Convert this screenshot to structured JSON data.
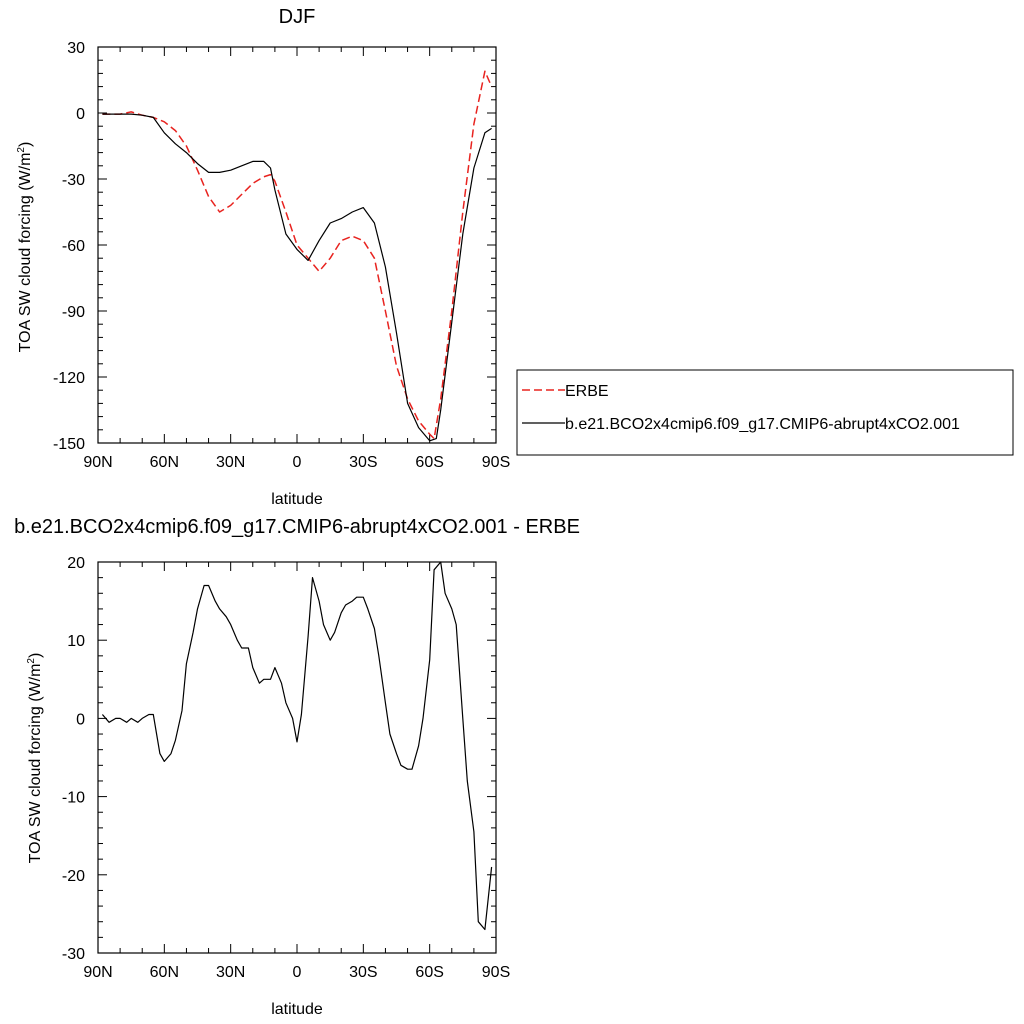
{
  "chart_data": [
    {
      "type": "line",
      "title": "DJF",
      "xlabel": "latitude",
      "ylabel": "TOA SW cloud forcing (W/m",
      "ylabel_sup": "2",
      "ylabel_close": ")",
      "xlim": [
        90,
        -90
      ],
      "ylim": [
        -150,
        30
      ],
      "x_ticks": [
        90,
        60,
        30,
        0,
        -30,
        -60,
        -90
      ],
      "x_tick_labels": [
        "90N",
        "60N",
        "30N",
        "0",
        "30S",
        "60S",
        "90S"
      ],
      "y_ticks": [
        -150,
        -120,
        -90,
        -60,
        -30,
        0,
        30
      ],
      "y_tick_labels": [
        "-150",
        "-120",
        "-90",
        "-60",
        "-30",
        "0",
        "30"
      ],
      "legend_position": "right",
      "series": [
        {
          "name": "ERBE",
          "color": "#e8231f",
          "dash": "dashed",
          "x": [
            88,
            85,
            80,
            75,
            70,
            65,
            60,
            55,
            50,
            45,
            40,
            35,
            30,
            25,
            20,
            15,
            12,
            10,
            5,
            0,
            -5,
            -10,
            -15,
            -20,
            -25,
            -30,
            -35,
            -40,
            -45,
            -50,
            -55,
            -60,
            -62,
            -65,
            -70,
            -75,
            -80,
            -85,
            -88
          ],
          "y": [
            -0.5,
            -0.5,
            -0.5,
            0.5,
            -1,
            -2,
            -4,
            -8,
            -15,
            -26,
            -38,
            -45,
            -42,
            -37,
            -32,
            -29,
            -28,
            -31,
            -45,
            -60,
            -66,
            -72,
            -66,
            -58,
            -56,
            -58,
            -66,
            -90,
            -115,
            -130,
            -140,
            -146,
            -148,
            -130,
            -90,
            -45,
            -5,
            19,
            12
          ]
        },
        {
          "name": "b.e21.BCO2x4cmip6.f09_g17.CMIP6-abrupt4xCO2.001",
          "color": "#000000",
          "dash": "solid",
          "x": [
            88,
            85,
            80,
            75,
            70,
            65,
            60,
            55,
            50,
            45,
            40,
            35,
            30,
            25,
            20,
            15,
            12,
            10,
            5,
            0,
            -5,
            -10,
            -15,
            -20,
            -25,
            -30,
            -35,
            -40,
            -45,
            -50,
            -55,
            -60,
            -63,
            -65,
            -70,
            -75,
            -80,
            -85,
            -88
          ],
          "y": [
            -0.5,
            -0.5,
            -0.5,
            -0.5,
            -1,
            -2,
            -9,
            -14,
            -18,
            -23,
            -27,
            -27,
            -26,
            -24,
            -22,
            -22,
            -25,
            -35,
            -55,
            -62,
            -67,
            -58,
            -50,
            -48,
            -45,
            -43,
            -50,
            -70,
            -100,
            -132,
            -143,
            -149,
            -148,
            -135,
            -95,
            -55,
            -25,
            -9,
            -7
          ]
        }
      ]
    },
    {
      "type": "line",
      "title": "b.e21.BCO2x4cmip6.f09_g17.CMIP6-abrupt4xCO2.001 - ERBE",
      "xlabel": "latitude",
      "ylabel": "TOA SW cloud forcing (W/m",
      "ylabel_sup": "2",
      "ylabel_close": ")",
      "xlim": [
        90,
        -90
      ],
      "ylim": [
        -30,
        20
      ],
      "x_ticks": [
        90,
        60,
        30,
        0,
        -30,
        -60,
        -90
      ],
      "x_tick_labels": [
        "90N",
        "60N",
        "30N",
        "0",
        "30S",
        "60S",
        "90S"
      ],
      "y_ticks": [
        -30,
        -20,
        -10,
        0,
        10,
        20
      ],
      "y_tick_labels": [
        "-30",
        "-20",
        "-10",
        "0",
        "10",
        "20"
      ],
      "series": [
        {
          "color": "#000000",
          "dash": "solid",
          "x": [
            88,
            85,
            82,
            80,
            77,
            75,
            72,
            70,
            67,
            65,
            62,
            60,
            57,
            55,
            52,
            50,
            47,
            45,
            42,
            40,
            37,
            35,
            32,
            30,
            27,
            25,
            22,
            20,
            17,
            15,
            12,
            10,
            7,
            5,
            2,
            0,
            -2,
            -5,
            -7,
            -10,
            -12,
            -15,
            -17,
            -20,
            -22,
            -25,
            -27,
            -30,
            -32,
            -35,
            -37,
            -40,
            -42,
            -45,
            -47,
            -50,
            -52,
            -55,
            -57,
            -60,
            -62,
            -65,
            -67,
            -70,
            -72,
            -75,
            -77,
            -80,
            -82,
            -85,
            -88
          ],
          "y": [
            0.5,
            -0.5,
            0,
            0,
            -0.5,
            0,
            -0.5,
            0,
            0.5,
            0.5,
            -4.5,
            -5.5,
            -4.5,
            -2.8,
            1,
            7,
            11,
            14,
            17,
            17,
            15,
            14,
            13,
            12,
            10,
            9,
            9,
            6.5,
            4.5,
            5,
            5,
            6.5,
            4.5,
            2,
            0,
            -3,
            0.5,
            10.5,
            18,
            15,
            12,
            10,
            11,
            13.5,
            14.5,
            15,
            15.5,
            15.5,
            14,
            11.5,
            8,
            2,
            -2,
            -4.5,
            -6,
            -6.5,
            -6.5,
            -3.5,
            0,
            7.5,
            19,
            20,
            16,
            14,
            12,
            0,
            -8,
            -14.5,
            -26,
            -27,
            -19
          ]
        }
      ]
    }
  ]
}
